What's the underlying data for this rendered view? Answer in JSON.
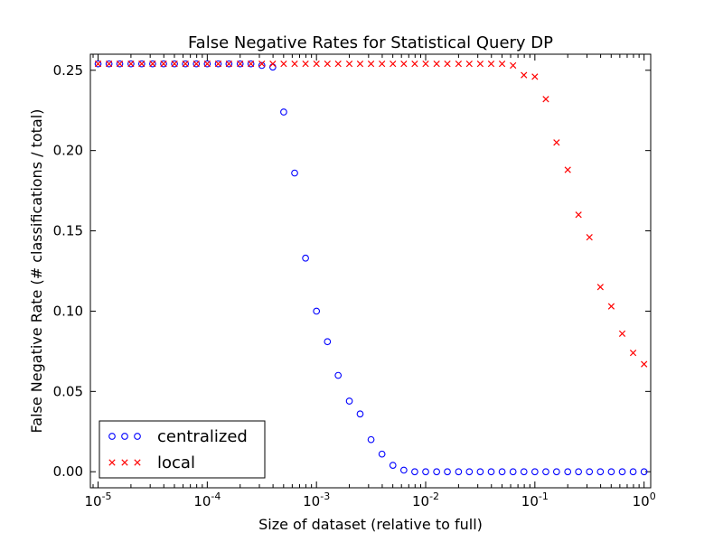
{
  "chart_data": {
    "type": "scatter",
    "title": "False Negative Rates for Statistical Query DP",
    "xlabel": "Size of dataset (relative to full)",
    "ylabel": "False Negative Rate (# classifications / total)",
    "xscale": "log",
    "xlim": [
      8.5e-06,
      1.15
    ],
    "ylim": [
      -0.01,
      0.26
    ],
    "grid": false,
    "legend_position": "lower-left",
    "x_ticks": [
      {
        "value": 1e-05,
        "base": "10",
        "exp": "-5"
      },
      {
        "value": 0.0001,
        "base": "10",
        "exp": "-4"
      },
      {
        "value": 0.001,
        "base": "10",
        "exp": "-3"
      },
      {
        "value": 0.01,
        "base": "10",
        "exp": "-2"
      },
      {
        "value": 0.1,
        "base": "10",
        "exp": "-1"
      },
      {
        "value": 1,
        "base": "10",
        "exp": "0"
      }
    ],
    "y_ticks": [
      {
        "value": 0.0,
        "label": "0.00"
      },
      {
        "value": 0.05,
        "label": "0.05"
      },
      {
        "value": 0.1,
        "label": "0.10"
      },
      {
        "value": 0.15,
        "label": "0.15"
      },
      {
        "value": 0.2,
        "label": "0.20"
      },
      {
        "value": 0.25,
        "label": "0.25"
      }
    ],
    "x": [
      1e-05,
      1.26e-05,
      1.58e-05,
      2e-05,
      2.51e-05,
      3.16e-05,
      3.98e-05,
      5.01e-05,
      6.31e-05,
      7.94e-05,
      0.0001,
      0.000126,
      0.000158,
      0.0002,
      0.000251,
      0.000316,
      0.000398,
      0.000501,
      0.000631,
      0.000794,
      0.001,
      0.00126,
      0.00158,
      0.002,
      0.00251,
      0.00316,
      0.00398,
      0.00501,
      0.00631,
      0.00794,
      0.01,
      0.0126,
      0.0158,
      0.02,
      0.0251,
      0.0316,
      0.0398,
      0.0501,
      0.0631,
      0.0794,
      0.1,
      0.126,
      0.158,
      0.2,
      0.251,
      0.316,
      0.398,
      0.501,
      0.631,
      0.794,
      1.0
    ],
    "series": [
      {
        "name": "centralized",
        "marker": "circle",
        "color": "#0000ff",
        "values": [
          0.254,
          0.254,
          0.254,
          0.254,
          0.254,
          0.254,
          0.254,
          0.254,
          0.254,
          0.254,
          0.254,
          0.254,
          0.254,
          0.254,
          0.254,
          0.253,
          0.252,
          0.224,
          0.186,
          0.133,
          0.1,
          0.081,
          0.06,
          0.044,
          0.036,
          0.02,
          0.011,
          0.004,
          0.001,
          0.0,
          0.0,
          0.0,
          0.0,
          0.0,
          0.0,
          0.0,
          0.0,
          0.0,
          0.0,
          0.0,
          0.0,
          0.0,
          0.0,
          0.0,
          0.0,
          0.0,
          0.0,
          0.0,
          0.0,
          0.0,
          0.0
        ]
      },
      {
        "name": "local",
        "marker": "x",
        "color": "#ff0000",
        "values": [
          0.254,
          0.254,
          0.254,
          0.254,
          0.254,
          0.254,
          0.254,
          0.254,
          0.254,
          0.254,
          0.254,
          0.254,
          0.254,
          0.254,
          0.254,
          0.254,
          0.254,
          0.254,
          0.254,
          0.254,
          0.254,
          0.254,
          0.254,
          0.254,
          0.254,
          0.254,
          0.254,
          0.254,
          0.254,
          0.254,
          0.254,
          0.254,
          0.254,
          0.254,
          0.254,
          0.254,
          0.254,
          0.254,
          0.253,
          0.247,
          0.246,
          0.232,
          0.205,
          0.188,
          0.16,
          0.146,
          0.115,
          0.103,
          0.086,
          0.074,
          0.067
        ]
      }
    ]
  }
}
